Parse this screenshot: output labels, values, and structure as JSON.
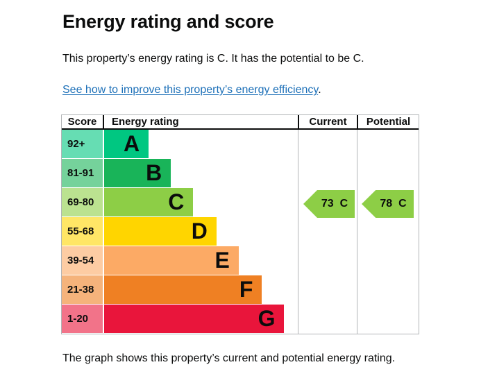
{
  "title": "Energy rating and score",
  "intro": {
    "text": "This property’s energy rating is C. It has the potential to be C.",
    "link_text": "See how to improve this property’s energy efficiency",
    "link_suffix": "."
  },
  "footer": {
    "text": "The graph shows this property’s current and potential energy rating."
  },
  "colors": {
    "text": "#0b0c0c",
    "link": "#1d70b8",
    "table_border": "#b1b4b6",
    "header_divider": "#0b0c0c"
  },
  "chart_data": {
    "type": "bar",
    "title": "Energy rating and score",
    "columns": [
      "Score",
      "Energy rating",
      "Current",
      "Potential"
    ],
    "bands": [
      {
        "letter": "A",
        "score": "92+",
        "color": "#00c781",
        "width_pct": 23
      },
      {
        "letter": "B",
        "score": "81-91",
        "color": "#19b459",
        "width_pct": 34.5
      },
      {
        "letter": "C",
        "score": "69-80",
        "color": "#8dce46",
        "width_pct": 46
      },
      {
        "letter": "D",
        "score": "55-68",
        "color": "#ffd500",
        "width_pct": 58
      },
      {
        "letter": "E",
        "score": "39-54",
        "color": "#fcaa65",
        "width_pct": 69.5
      },
      {
        "letter": "F",
        "score": "21-38",
        "color": "#ef8023",
        "width_pct": 81.5
      },
      {
        "letter": "G",
        "score": "1-20",
        "color": "#e9153b",
        "width_pct": 93
      }
    ],
    "score_tint_opacity": 0.6,
    "current": {
      "label": "Current",
      "value": "73",
      "band": "C",
      "row_index": 2,
      "color": "#8dce46"
    },
    "potential": {
      "label": "Potential",
      "value": "78",
      "band": "C",
      "row_index": 2,
      "color": "#8dce46"
    }
  }
}
